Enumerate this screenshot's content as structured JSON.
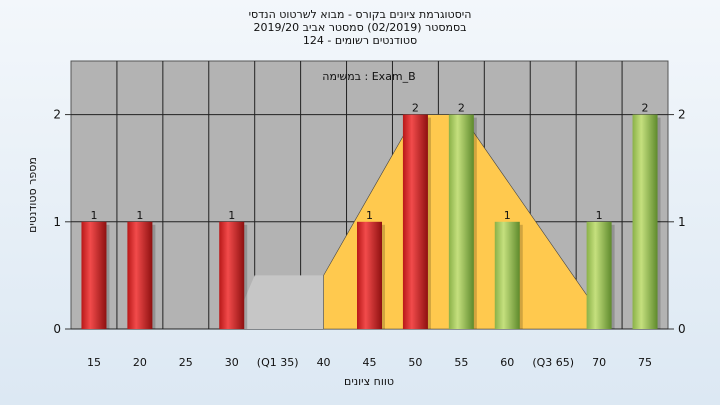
{
  "header": {
    "title": "היסטוגרמת ציונים בקורס - מבוא לשרטוט הנדסי",
    "subtitle": "בסמסטר  (02/2019)  סמסטר אביב 2019/20",
    "students_line": "סטודנטים רשומים - 124"
  },
  "chart_data": {
    "type": "bar",
    "annotation": "במשימה : Exam_B",
    "xlabel": "טווח ציונים",
    "ylabel": "מספר סטודנטים",
    "ylim": [
      0,
      2.5
    ],
    "y_ticks": [
      0,
      1,
      2
    ],
    "categories": [
      "15",
      "20",
      "25",
      "30",
      "(Q1 35)",
      "40",
      "45",
      "50",
      "55",
      "60",
      "(Q3 65)",
      "70",
      "75"
    ],
    "values": [
      1,
      1,
      0,
      1,
      0,
      0,
      1,
      2,
      2,
      1,
      0,
      1,
      2
    ],
    "data_labels": [
      "1",
      "1",
      "",
      "1",
      "",
      "",
      "1",
      "2",
      "2",
      "1",
      "",
      "1",
      "2"
    ],
    "bar_colors": [
      "red",
      "red",
      "red",
      "red",
      "red",
      "red",
      "red",
      "red",
      "green",
      "green",
      "green",
      "green",
      "green"
    ],
    "quartile_band": {
      "from": "30",
      "to": "40",
      "value": 0.5
    },
    "distribution_area": [
      {
        "x": "40",
        "y": 0.5
      },
      {
        "x": "50",
        "y": 2
      },
      {
        "x": "55",
        "y": 2
      },
      {
        "x": "70",
        "y": 0.15
      }
    ],
    "grid": true,
    "colors": {
      "plot_bg": "#b3b3b3",
      "gridline": "#222222",
      "bar_red": "#e23535",
      "bar_green": "#9cc45a",
      "area_fill": "#ffc94e",
      "band_fill": "#c6c6c6"
    }
  }
}
